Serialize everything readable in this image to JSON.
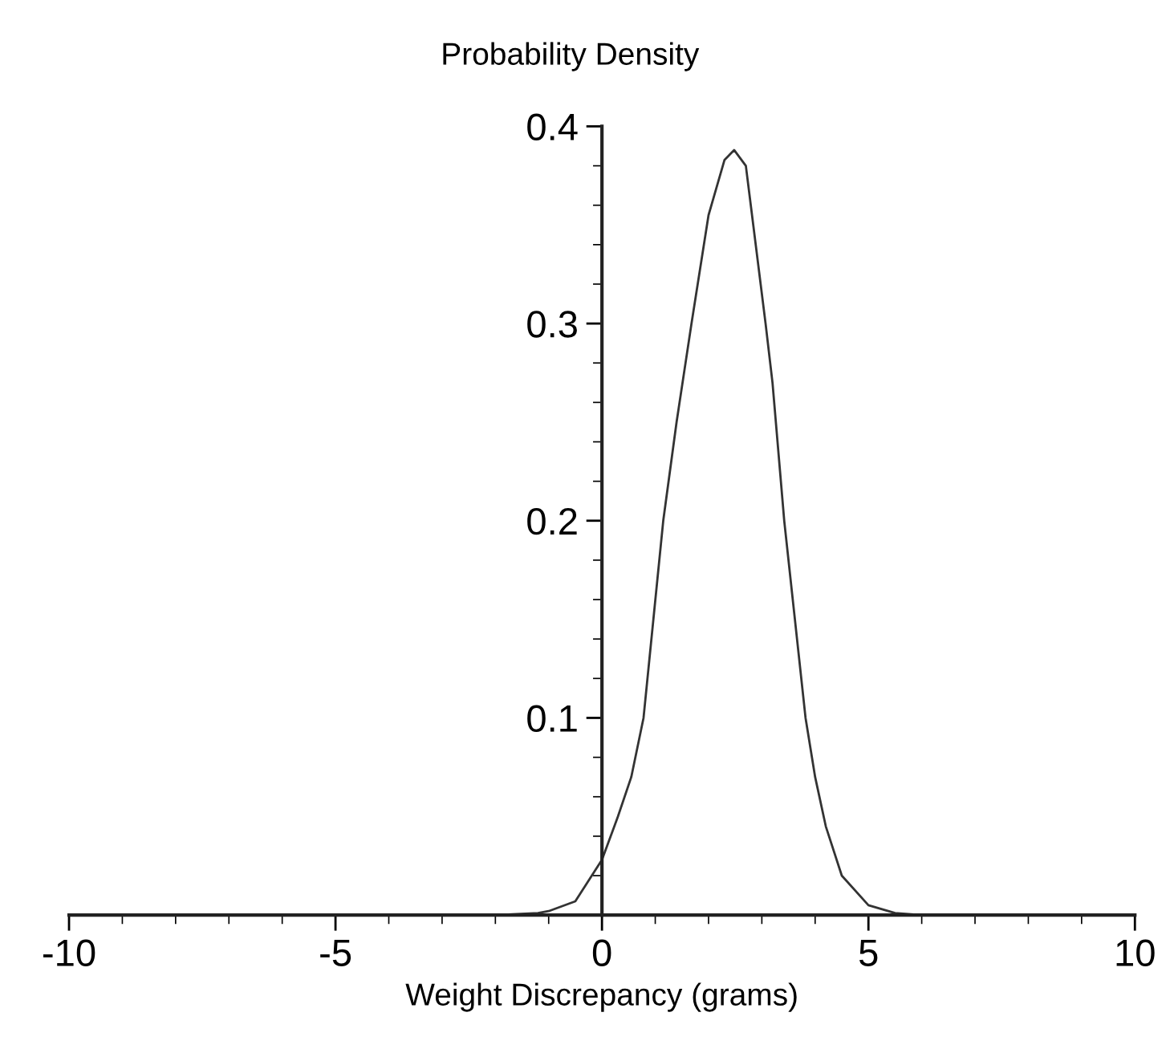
{
  "chart_data": {
    "type": "line",
    "ylabel": "Probability Density",
    "xlabel": "Weight Discrepancy (grams)",
    "x": [
      -10,
      -2,
      -1.2,
      -1,
      -0.5,
      0,
      0.3,
      0.55,
      0.78,
      1.15,
      1.4,
      1.68,
      2.0,
      2.3,
      2.48,
      2.7,
      3.07,
      3.2,
      3.42,
      3.82,
      4.0,
      4.2,
      4.5,
      5,
      5.5,
      6,
      10
    ],
    "series": [
      {
        "color": "#333333",
        "values": [
          0,
          0,
          0.001,
          0.002,
          0.007,
          0.028,
          0.05,
          0.07,
          0.1,
          0.2,
          0.25,
          0.3,
          0.355,
          0.383,
          0.388,
          0.38,
          0.3,
          0.27,
          0.2,
          0.1,
          0.07,
          0.045,
          0.02,
          0.005,
          0.001,
          0,
          0
        ]
      }
    ],
    "xlim": [
      -10,
      10
    ],
    "ylim": [
      0,
      0.4
    ],
    "xticks": [
      -10,
      -5,
      0,
      5,
      10
    ],
    "yticks": [
      0.1,
      0.2,
      0.3,
      0.4
    ],
    "grid": false,
    "legend": false,
    "marker": "none",
    "line_style": "solid"
  }
}
